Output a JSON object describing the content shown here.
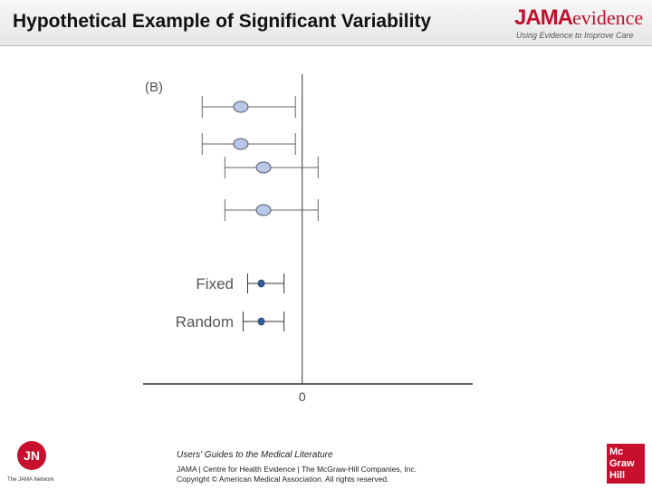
{
  "slide": {
    "title": "Hypothetical Example of Significant Variability"
  },
  "brand": {
    "name_main": "JAMA",
    "name_suffix": "evidence",
    "tagline": "Using Evidence to Improve Care",
    "accent_color": "#c0112d"
  },
  "chart_data": {
    "type": "forest",
    "panel_label": "(B)",
    "rows": [
      {
        "label": "",
        "estimate": -2.7,
        "ci_low": -4.4,
        "ci_high": -0.3,
        "marker": "light-ellipse"
      },
      {
        "label": "",
        "estimate": -2.7,
        "ci_low": -4.4,
        "ci_high": -0.3,
        "marker": "light-ellipse"
      },
      {
        "label": "",
        "estimate": -1.7,
        "ci_low": -3.4,
        "ci_high": 0.7,
        "marker": "light-ellipse"
      },
      {
        "label": "",
        "estimate": -1.7,
        "ci_low": -3.4,
        "ci_high": 0.7,
        "marker": "light-ellipse"
      },
      {
        "label": "Fixed",
        "estimate": -1.8,
        "ci_low": -2.4,
        "ci_high": -0.8,
        "marker": "dark-point"
      },
      {
        "label": "Random",
        "estimate": -1.8,
        "ci_low": -2.6,
        "ci_high": -0.8,
        "marker": "dark-point"
      }
    ],
    "x_tick_labels": [
      "0"
    ],
    "reference_line_at": 0,
    "xlim": [
      -7.0,
      7.5
    ],
    "colors": {
      "light_marker": "#b8c8e6",
      "dark_marker": "#2f5e9c"
    }
  },
  "footer": {
    "line1": "Users' Guides to the Medical Literature",
    "line2": "JAMA | Centre for Health Evidence | The McGraw-Hill Companies, Inc.",
    "line3": "Copyright © American Medical Association. All rights reserved."
  },
  "logos": {
    "jn_letters": "JN",
    "jn_network": "The JAMA Network",
    "mcgraw_lines": [
      "Mc",
      "Graw",
      "Hill"
    ]
  }
}
